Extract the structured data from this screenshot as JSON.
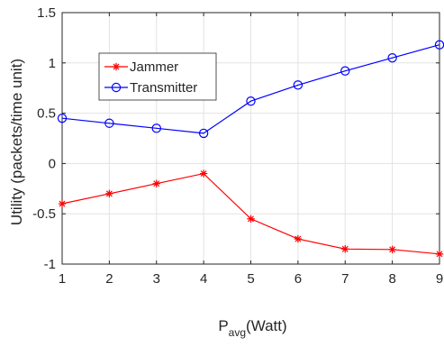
{
  "chart_data": {
    "type": "line",
    "title": "",
    "xlabel": "P",
    "xlabel_subscript": "avg",
    "xlabel_suffix": "(Watt)",
    "ylabel": "Utility (packets/time unit)",
    "x": [
      1,
      2,
      3,
      4,
      5,
      6,
      7,
      8,
      9
    ],
    "xlim": [
      1,
      9
    ],
    "ylim": [
      -1,
      1.5
    ],
    "xticks": [
      1,
      2,
      3,
      4,
      5,
      6,
      7,
      8,
      9
    ],
    "xtick_labels": [
      "1",
      "2",
      "3",
      "4",
      "5",
      "6",
      "7",
      "8",
      "9"
    ],
    "yticks": [
      -1,
      -0.5,
      0,
      0.5,
      1,
      1.5
    ],
    "ytick_labels": [
      "-1",
      "-0.5",
      "0",
      "0.5",
      "1",
      "1.5"
    ],
    "grid": true,
    "legend_position": "top-left",
    "series": [
      {
        "name": "Jammer",
        "color": "#ff0000",
        "marker": "asterisk",
        "values": [
          -0.4,
          -0.3,
          -0.2,
          -0.1,
          -0.55,
          -0.75,
          -0.85,
          -0.855,
          -0.9
        ]
      },
      {
        "name": "Transmitter",
        "color": "#0000ff",
        "marker": "circle",
        "values": [
          0.45,
          0.4,
          0.35,
          0.3,
          0.62,
          0.78,
          0.92,
          1.05,
          1.18
        ]
      }
    ]
  }
}
